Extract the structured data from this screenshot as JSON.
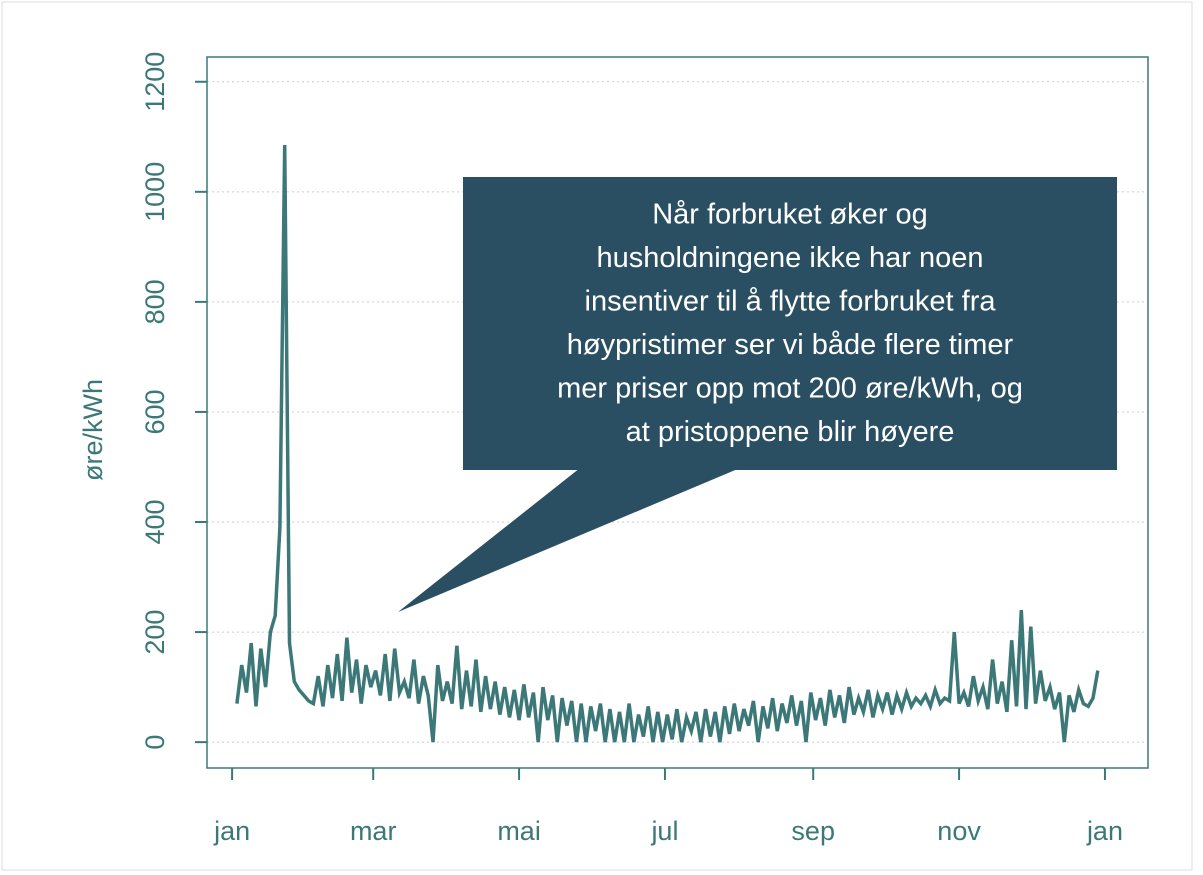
{
  "chart_data": {
    "type": "line",
    "ylabel": "øre/kWh",
    "annotation": [
      "Når forbruket øker og",
      "husholdningene ikke har noen",
      "insentiver til å flytte forbruket fra",
      "høypristimer ser vi både flere timer",
      "mer priser opp mot 200 øre/kWh, og",
      "at pristoppene blir høyere"
    ],
    "x": [
      2,
      4,
      6,
      8,
      10,
      12,
      14,
      16,
      18,
      20,
      22,
      24,
      26,
      28,
      30,
      32,
      34,
      36,
      38,
      40,
      42,
      44,
      46,
      48,
      50,
      52,
      54,
      56,
      58,
      60,
      62,
      64,
      66,
      68,
      70,
      72,
      74,
      76,
      78,
      80,
      82,
      84,
      86,
      88,
      90,
      92,
      94,
      96,
      98,
      100,
      102,
      104,
      106,
      108,
      110,
      112,
      114,
      116,
      118,
      120,
      122,
      124,
      126,
      128,
      130,
      132,
      134,
      136,
      138,
      140,
      142,
      144,
      146,
      148,
      150,
      152,
      154,
      156,
      158,
      160,
      162,
      164,
      166,
      168,
      170,
      172,
      174,
      176,
      178,
      180,
      182,
      184,
      186,
      188,
      190,
      192,
      194,
      196,
      198,
      200,
      202,
      204,
      206,
      208,
      210,
      212,
      214,
      216,
      218,
      220,
      222,
      224,
      226,
      228,
      230,
      232,
      234,
      236,
      238,
      240,
      242,
      244,
      246,
      248,
      250,
      252,
      254,
      256,
      258,
      260,
      262,
      264,
      266,
      268,
      270,
      272,
      274,
      276,
      278,
      280,
      282,
      284,
      286,
      288,
      290,
      292,
      294,
      296,
      298,
      300,
      302,
      304,
      306,
      308,
      310,
      312,
      314,
      316,
      318,
      320,
      322,
      324,
      326,
      328,
      330,
      332,
      334,
      336,
      338,
      340,
      342,
      344,
      346,
      348,
      350,
      352,
      354,
      356,
      358,
      360,
      362
    ],
    "series": [
      {
        "color": "#3d7878",
        "values": [
          70,
          140,
          90,
          180,
          65,
          170,
          100,
          200,
          230,
          390,
          1085,
          180,
          110,
          95,
          85,
          75,
          70,
          120,
          65,
          140,
          80,
          160,
          75,
          190,
          90,
          150,
          70,
          140,
          100,
          130,
          85,
          160,
          75,
          170,
          90,
          110,
          80,
          150,
          70,
          120,
          85,
          0,
          140,
          75,
          110,
          70,
          175,
          60,
          130,
          65,
          150,
          55,
          120,
          60,
          110,
          50,
          100,
          45,
          95,
          40,
          105,
          45,
          90,
          0,
          100,
          40,
          85,
          0,
          80,
          30,
          75,
          0,
          70,
          0,
          65,
          20,
          70,
          0,
          60,
          0,
          55,
          0,
          70,
          0,
          50,
          10,
          65,
          0,
          55,
          0,
          50,
          5,
          60,
          0,
          45,
          20,
          55,
          0,
          60,
          10,
          55,
          0,
          65,
          15,
          70,
          20,
          60,
          30,
          75,
          0,
          65,
          25,
          80,
          20,
          70,
          35,
          85,
          30,
          75,
          0,
          90,
          40,
          80,
          30,
          95,
          45,
          85,
          35,
          100,
          50,
          80,
          55,
          95,
          45,
          85,
          60,
          90,
          50,
          85,
          60,
          90,
          65,
          80,
          70,
          85,
          65,
          95,
          70,
          80,
          75,
          200,
          70,
          90,
          65,
          120,
          75,
          100,
          60,
          150,
          70,
          110,
          55,
          185,
          65,
          240,
          60,
          210,
          70,
          130,
          75,
          100,
          60,
          90,
          0,
          85,
          55,
          95,
          70,
          65,
          80,
          130
        ]
      }
    ],
    "xlim": [
      -10.5,
      383
    ],
    "xticks": [
      {
        "value": 0,
        "label": "jan"
      },
      {
        "value": 59,
        "label": "mar"
      },
      {
        "value": 120,
        "label": "mai"
      },
      {
        "value": 181,
        "label": "jul"
      },
      {
        "value": 243,
        "label": "sep"
      },
      {
        "value": 304,
        "label": "nov"
      },
      {
        "value": 365,
        "label": "jan"
      }
    ],
    "ylim": [
      -47,
      1245
    ],
    "yticks": [
      0,
      200,
      400,
      600,
      800,
      1000,
      1200
    ],
    "grid": true
  }
}
